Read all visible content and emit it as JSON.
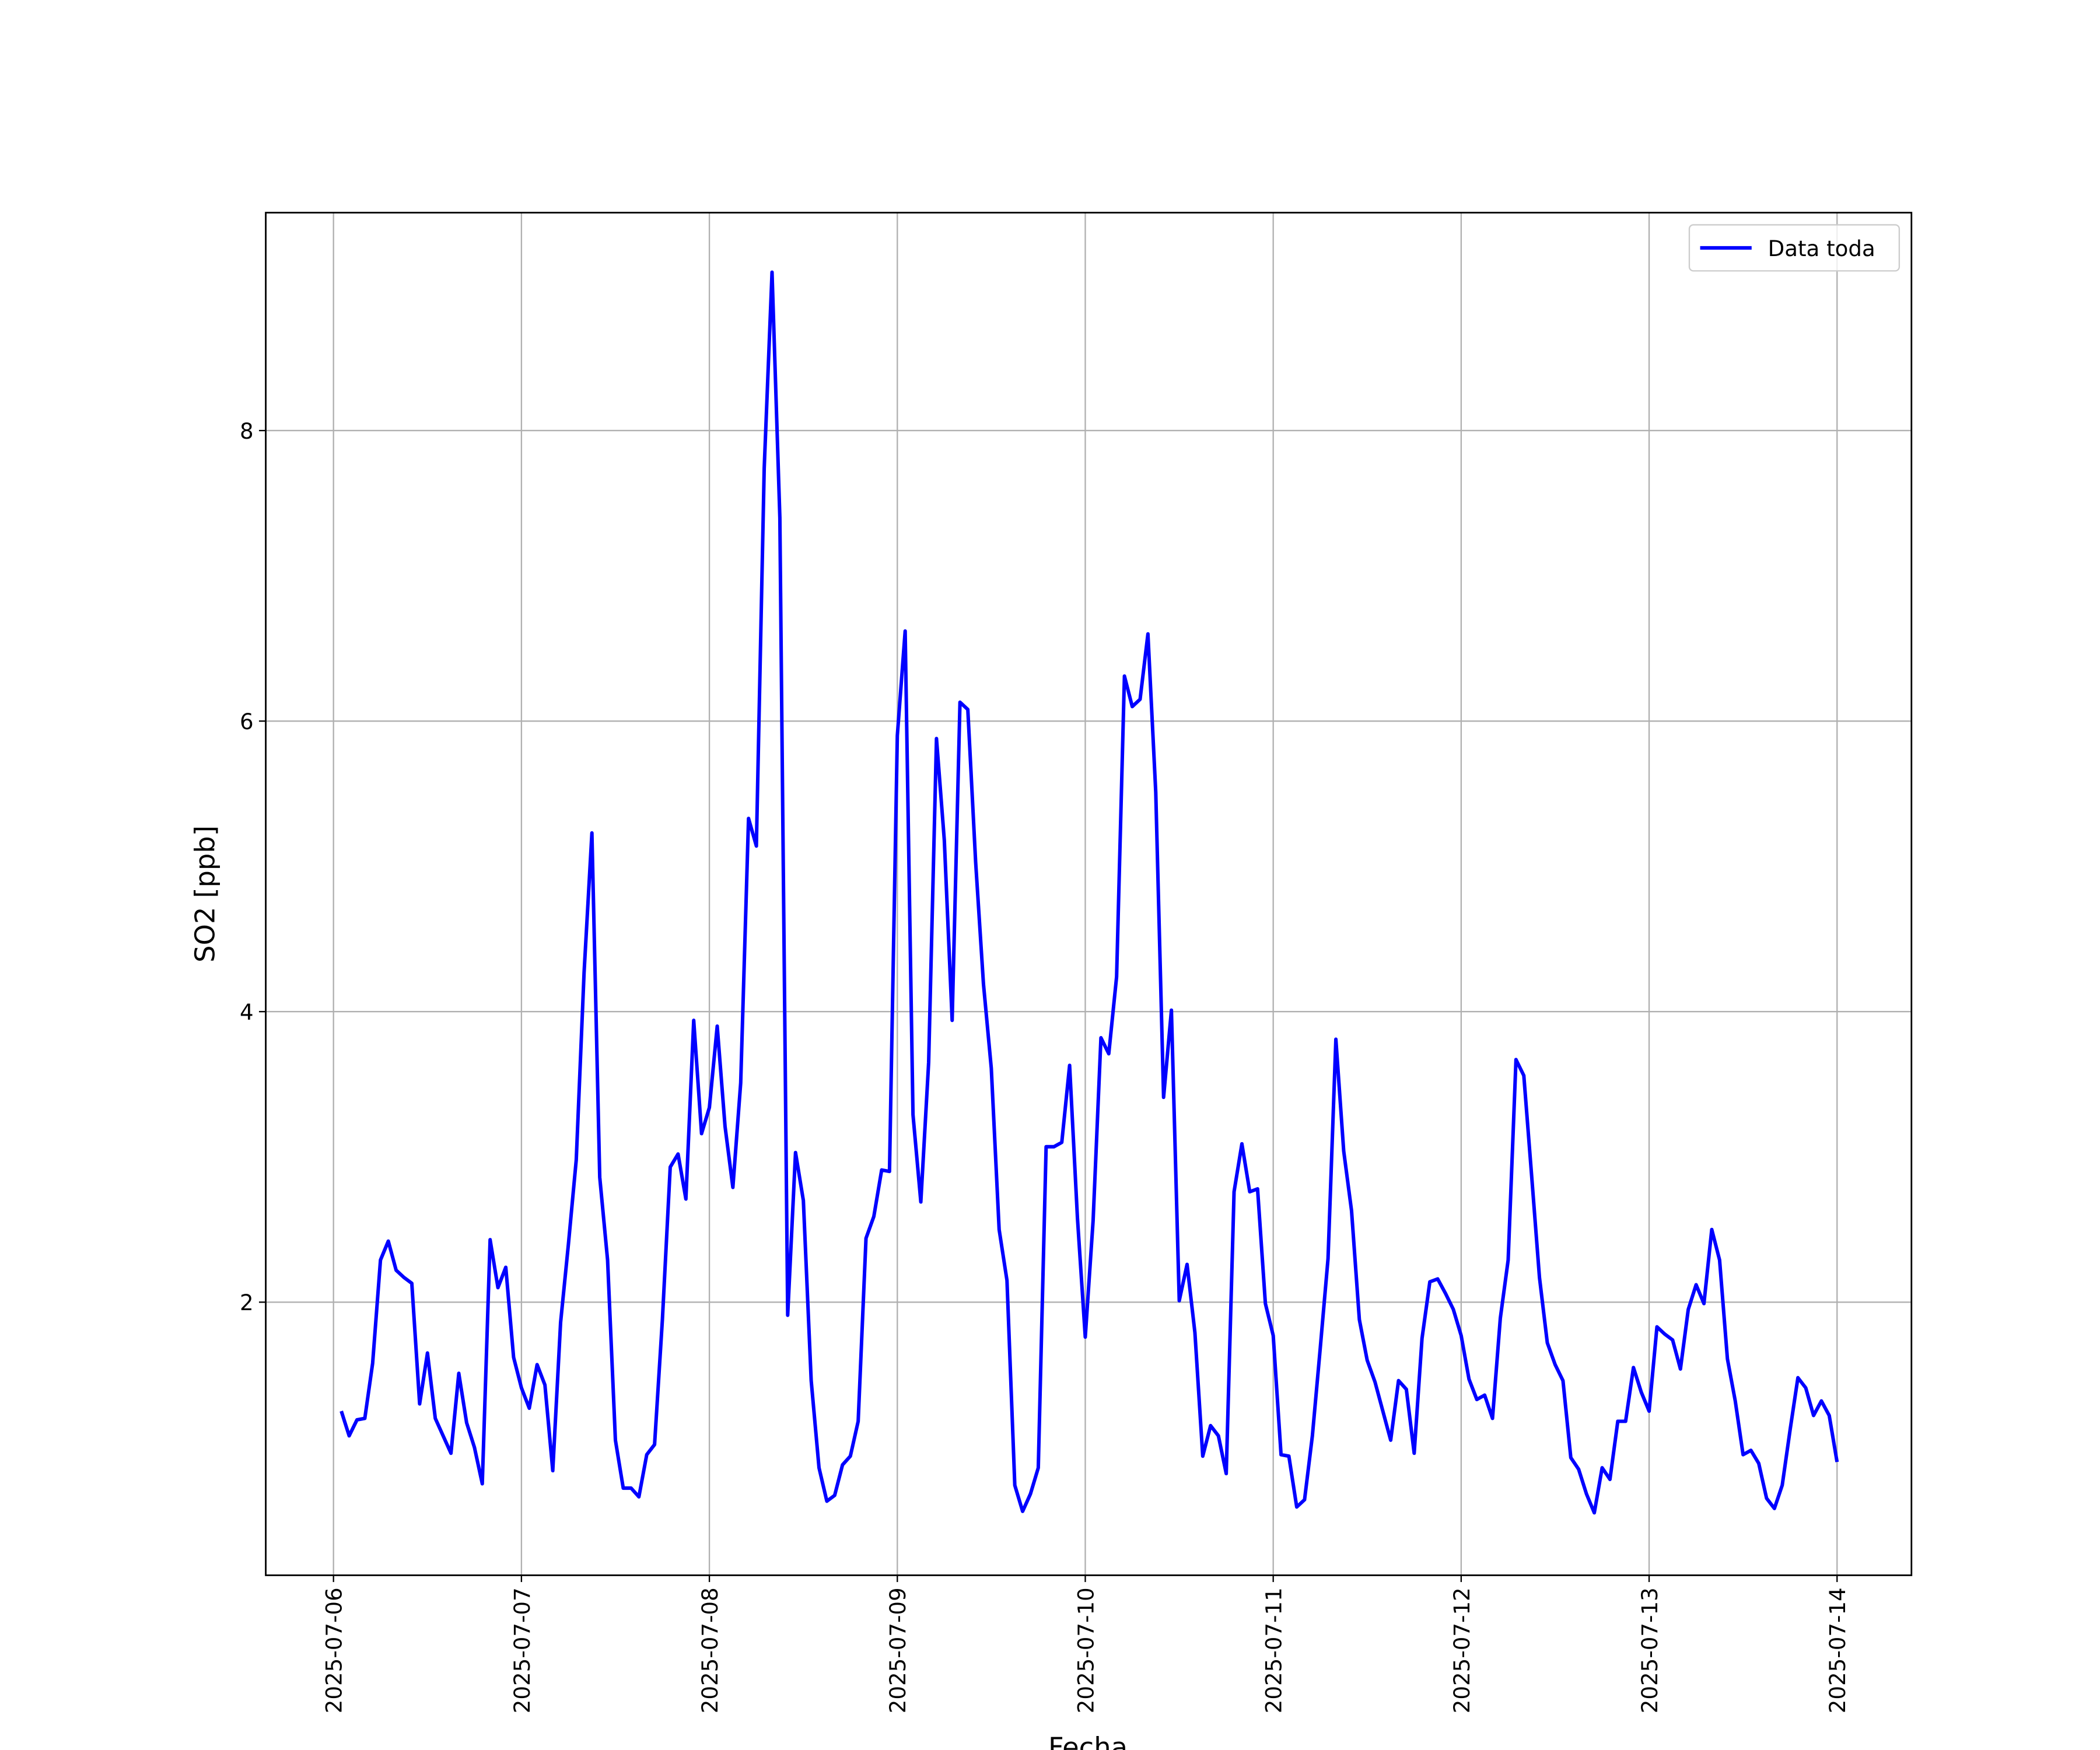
{
  "chart_data": {
    "type": "line",
    "xlabel": "Fecha",
    "ylabel": "SO2 [ppb]",
    "x": [
      "2025-07-06 01:00",
      "2025-07-06 02:00",
      "2025-07-06 03:00",
      "2025-07-06 04:00",
      "2025-07-06 05:00",
      "2025-07-06 06:00",
      "2025-07-06 07:00",
      "2025-07-06 08:00",
      "2025-07-06 09:00",
      "2025-07-06 10:00",
      "2025-07-06 11:00",
      "2025-07-06 12:00",
      "2025-07-06 13:00",
      "2025-07-06 14:00",
      "2025-07-06 15:00",
      "2025-07-06 16:00",
      "2025-07-06 17:00",
      "2025-07-06 18:00",
      "2025-07-06 19:00",
      "2025-07-06 20:00",
      "2025-07-06 21:00",
      "2025-07-06 22:00",
      "2025-07-06 23:00",
      "2025-07-07 00:00",
      "2025-07-07 01:00",
      "2025-07-07 02:00",
      "2025-07-07 03:00",
      "2025-07-07 04:00",
      "2025-07-07 05:00",
      "2025-07-07 06:00",
      "2025-07-07 07:00",
      "2025-07-07 08:00",
      "2025-07-07 09:00",
      "2025-07-07 10:00",
      "2025-07-07 11:00",
      "2025-07-07 12:00",
      "2025-07-07 13:00",
      "2025-07-07 14:00",
      "2025-07-07 15:00",
      "2025-07-07 16:00",
      "2025-07-07 17:00",
      "2025-07-07 18:00",
      "2025-07-07 19:00",
      "2025-07-07 20:00",
      "2025-07-07 21:00",
      "2025-07-07 22:00",
      "2025-07-07 23:00",
      "2025-07-08 00:00",
      "2025-07-08 01:00",
      "2025-07-08 02:00",
      "2025-07-08 03:00",
      "2025-07-08 04:00",
      "2025-07-08 05:00",
      "2025-07-08 06:00",
      "2025-07-08 07:00",
      "2025-07-08 08:00",
      "2025-07-08 09:00",
      "2025-07-08 10:00",
      "2025-07-08 11:00",
      "2025-07-08 12:00",
      "2025-07-08 13:00",
      "2025-07-08 14:00",
      "2025-07-08 15:00",
      "2025-07-08 16:00",
      "2025-07-08 17:00",
      "2025-07-08 18:00",
      "2025-07-08 19:00",
      "2025-07-08 20:00",
      "2025-07-08 21:00",
      "2025-07-08 22:00",
      "2025-07-08 23:00",
      "2025-07-09 00:00",
      "2025-07-09 01:00",
      "2025-07-09 02:00",
      "2025-07-09 03:00",
      "2025-07-09 04:00",
      "2025-07-09 05:00",
      "2025-07-09 06:00",
      "2025-07-09 07:00",
      "2025-07-09 08:00",
      "2025-07-09 09:00",
      "2025-07-09 10:00",
      "2025-07-09 11:00",
      "2025-07-09 12:00",
      "2025-07-09 13:00",
      "2025-07-09 14:00",
      "2025-07-09 15:00",
      "2025-07-09 16:00",
      "2025-07-09 17:00",
      "2025-07-09 18:00",
      "2025-07-09 19:00",
      "2025-07-09 20:00",
      "2025-07-09 21:00",
      "2025-07-09 22:00",
      "2025-07-09 23:00",
      "2025-07-10 00:00",
      "2025-07-10 01:00",
      "2025-07-10 02:00",
      "2025-07-10 03:00",
      "2025-07-10 04:00",
      "2025-07-10 05:00",
      "2025-07-10 06:00",
      "2025-07-10 07:00",
      "2025-07-10 08:00",
      "2025-07-10 09:00",
      "2025-07-10 10:00",
      "2025-07-10 11:00",
      "2025-07-10 12:00",
      "2025-07-10 13:00",
      "2025-07-10 14:00",
      "2025-07-10 15:00",
      "2025-07-10 16:00",
      "2025-07-10 17:00",
      "2025-07-10 18:00",
      "2025-07-10 19:00",
      "2025-07-10 20:00",
      "2025-07-10 21:00",
      "2025-07-10 22:00",
      "2025-07-10 23:00",
      "2025-07-11 00:00",
      "2025-07-11 01:00",
      "2025-07-11 02:00",
      "2025-07-11 03:00",
      "2025-07-11 04:00",
      "2025-07-11 05:00",
      "2025-07-11 06:00",
      "2025-07-11 07:00",
      "2025-07-11 08:00",
      "2025-07-11 09:00",
      "2025-07-11 10:00",
      "2025-07-11 11:00",
      "2025-07-11 12:00",
      "2025-07-11 13:00",
      "2025-07-11 14:00",
      "2025-07-11 15:00",
      "2025-07-11 16:00",
      "2025-07-11 17:00",
      "2025-07-11 18:00",
      "2025-07-11 19:00",
      "2025-07-11 20:00",
      "2025-07-11 21:00",
      "2025-07-11 22:00",
      "2025-07-11 23:00",
      "2025-07-12 00:00",
      "2025-07-12 01:00",
      "2025-07-12 02:00",
      "2025-07-12 03:00",
      "2025-07-12 04:00",
      "2025-07-12 05:00",
      "2025-07-12 06:00",
      "2025-07-12 07:00",
      "2025-07-12 08:00",
      "2025-07-12 09:00",
      "2025-07-12 10:00",
      "2025-07-12 11:00",
      "2025-07-12 12:00",
      "2025-07-12 13:00",
      "2025-07-12 14:00",
      "2025-07-12 15:00",
      "2025-07-12 16:00",
      "2025-07-12 17:00",
      "2025-07-12 18:00",
      "2025-07-12 19:00",
      "2025-07-12 20:00",
      "2025-07-12 21:00",
      "2025-07-12 22:00",
      "2025-07-12 23:00",
      "2025-07-13 00:00",
      "2025-07-13 01:00",
      "2025-07-13 02:00",
      "2025-07-13 03:00",
      "2025-07-13 04:00",
      "2025-07-13 05:00",
      "2025-07-13 06:00",
      "2025-07-13 07:00",
      "2025-07-13 08:00",
      "2025-07-13 09:00",
      "2025-07-13 10:00",
      "2025-07-13 11:00",
      "2025-07-13 12:00",
      "2025-07-13 13:00",
      "2025-07-13 14:00",
      "2025-07-13 15:00",
      "2025-07-13 16:00",
      "2025-07-13 17:00",
      "2025-07-13 18:00",
      "2025-07-13 19:00",
      "2025-07-13 20:00",
      "2025-07-13 21:00",
      "2025-07-13 22:00",
      "2025-07-13 23:00",
      "2025-07-14 00:00"
    ],
    "series": [
      {
        "name": "Data toda",
        "color": "#0000ff",
        "values": [
          1.25,
          1.08,
          1.19,
          1.2,
          1.58,
          2.29,
          2.42,
          2.22,
          2.17,
          2.13,
          1.3,
          1.65,
          1.2,
          1.08,
          0.96,
          1.51,
          1.17,
          1.0,
          0.75,
          2.43,
          2.1,
          2.24,
          1.62,
          1.41,
          1.27,
          1.57,
          1.43,
          0.84,
          1.86,
          2.4,
          2.98,
          4.27,
          5.23,
          2.86,
          2.29,
          1.05,
          0.72,
          0.72,
          0.66,
          0.95,
          1.02,
          1.88,
          2.93,
          3.02,
          2.71,
          3.94,
          3.16,
          3.34,
          3.9,
          3.21,
          2.79,
          3.51,
          5.33,
          5.14,
          7.74,
          9.09,
          7.4,
          1.91,
          3.03,
          2.7,
          1.46,
          0.86,
          0.63,
          0.67,
          0.88,
          0.94,
          1.18,
          2.44,
          2.59,
          2.91,
          2.9,
          5.9,
          6.62,
          3.29,
          2.69,
          3.65,
          5.88,
          5.18,
          3.94,
          6.13,
          6.08,
          5.03,
          4.19,
          3.61,
          2.5,
          2.15,
          0.74,
          0.56,
          0.68,
          0.86,
          3.07,
          3.07,
          3.1,
          3.63,
          2.58,
          1.76,
          2.56,
          3.82,
          3.71,
          4.24,
          6.31,
          6.1,
          6.15,
          6.6,
          5.51,
          3.41,
          4.01,
          2.01,
          2.26,
          1.79,
          0.94,
          1.15,
          1.08,
          0.82,
          2.76,
          3.09,
          2.76,
          2.78,
          1.99,
          1.77,
          0.95,
          0.94,
          0.59,
          0.64,
          1.08,
          1.68,
          2.3,
          3.81,
          3.04,
          2.63,
          1.88,
          1.6,
          1.45,
          1.25,
          1.05,
          1.46,
          1.4,
          0.96,
          1.75,
          2.14,
          2.16,
          2.06,
          1.95,
          1.77,
          1.47,
          1.33,
          1.36,
          1.2,
          1.89,
          2.29,
          3.67,
          3.56,
          2.87,
          2.17,
          1.72,
          1.57,
          1.46,
          0.93,
          0.85,
          0.68,
          0.55,
          0.86,
          0.78,
          1.18,
          1.18,
          1.55,
          1.38,
          1.25,
          1.83,
          1.78,
          1.74,
          1.54,
          1.95,
          2.12,
          1.99,
          2.5,
          2.29,
          1.61,
          1.32,
          0.95,
          0.98,
          0.89,
          0.65,
          0.58,
          0.74,
          1.12,
          1.48,
          1.41,
          1.22,
          1.32,
          1.22,
          0.9
        ]
      }
    ],
    "xlim": [
      "2025-07-05 15:21",
      "2025-07-14 09:30"
    ],
    "xticks": [
      "2025-07-06",
      "2025-07-07",
      "2025-07-08",
      "2025-07-09",
      "2025-07-10",
      "2025-07-11",
      "2025-07-12",
      "2025-07-13",
      "2025-07-14"
    ],
    "ylim": [
      0.12,
      9.5
    ],
    "yticks": [
      2,
      4,
      6,
      8
    ],
    "grid": true,
    "legend": "upper right"
  }
}
